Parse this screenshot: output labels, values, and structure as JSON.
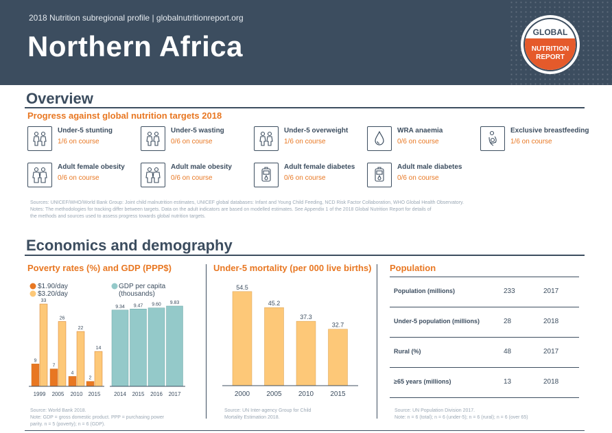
{
  "header": {
    "subtitle": "2018 Nutrition subregional profile | globalnutritionreport.org",
    "title": "Northern Africa",
    "logo_text": [
      "GLOBAL",
      "NUTRITION",
      "REPORT"
    ]
  },
  "overview": {
    "heading": "Overview",
    "subheading": "Progress against global nutrition targets 2018",
    "targets": [
      {
        "label": "Under-5 stunting",
        "status": "1/6 on course",
        "icon": "children-icon"
      },
      {
        "label": "Under-5 wasting",
        "status": "0/6 on course",
        "icon": "children-icon"
      },
      {
        "label": "Under-5 overweight",
        "status": "1/6 on course",
        "icon": "children-icon"
      },
      {
        "label": "WRA anaemia",
        "status": "0/6 on course",
        "icon": "blood-drop-icon"
      },
      {
        "label": "Exclusive breastfeeding",
        "status": "1/6 on course",
        "icon": "mother-child-icon"
      },
      {
        "label": "Adult female obesity",
        "status": "0/6 on course",
        "icon": "adults-icon"
      },
      {
        "label": "Adult male obesity",
        "status": "0/6 on course",
        "icon": "adults-icon"
      },
      {
        "label": "Adult female diabetes",
        "status": "0/6 on course",
        "icon": "glucose-meter-icon"
      },
      {
        "label": "Adult male diabetes",
        "status": "0/6 on course",
        "icon": "glucose-meter-icon"
      }
    ],
    "sources": "Sources: UNICEF/WHO/World Bank Group: Joint child malnutrition estimates, UNICEF global databases: Infant and Young Child Feeding, NCD Risk Factor Collaboration, WHO Global Health Observatory.",
    "notes_1": "Notes: The methodologies for tracking differ between targets. Data on the adult indicators are based on modelled estimates. See Appendix 1 of the 2018 Global Nutrition Report for details of",
    "notes_2": "the methods and sources used to assess progress towards global nutrition targets."
  },
  "economics": {
    "heading": "Economics and demography",
    "poverty_title": "Poverty rates (%) and GDP (PPP$)",
    "mortality_title": "Under-5 mortality (per 000 live births)",
    "population_title": "Population",
    "poverty_source": "Source: World Bank 2018.",
    "poverty_note_1": "Note: GDP = gross domestic product. PPP = purchasing power",
    "poverty_note_2": "parity. n = 5 (poverty); n = 6 (GDP).",
    "mortality_source_1": "Source: UN Inter-agency Group for Child",
    "mortality_source_2": "Mortality Estimation 2018.",
    "population_source": "Source: UN Population Division 2017.",
    "population_note": "Note: n = 6 (total); n = 6 (under-5); n = 6 (rural); n = 6 (over 65)",
    "population_rows": [
      {
        "label": "Population (millions)",
        "value": "233",
        "year": "2017"
      },
      {
        "label": "Under-5 population (millions)",
        "value": "28",
        "year": "2018"
      },
      {
        "label": "Rural (%)",
        "value": "48",
        "year": "2017"
      },
      {
        "label": "≥65 years (millions)",
        "value": "13",
        "year": "2018"
      }
    ]
  },
  "colors": {
    "navy": "#3c4d5f",
    "orange": "#e87722",
    "poverty_dark": "#e87722",
    "poverty_light": "#fdc878",
    "gdp": "#94c9c9",
    "mortality": "#fdc878"
  },
  "chart_data": [
    {
      "type": "bar",
      "categories": [
        "1999",
        "2005",
        "2010",
        "2015"
      ],
      "series": [
        {
          "name": "$1.90/day",
          "values": [
            9,
            7,
            4,
            2
          ]
        },
        {
          "name": "$3.20/day",
          "values": [
            33,
            26,
            22,
            14
          ]
        }
      ],
      "legend": "top-left"
    },
    {
      "type": "bar",
      "categories": [
        "2014",
        "2015",
        "2016",
        "2017"
      ],
      "series": [
        {
          "name": "GDP per capita (thousands)",
          "values": [
            9.34,
            9.47,
            9.6,
            9.83
          ],
          "labels": [
            "9.34",
            "9.47",
            "9.60",
            "9.83"
          ]
        }
      ],
      "legend": "top-left"
    },
    {
      "type": "bar",
      "categories": [
        "2000",
        "2005",
        "2010",
        "2015"
      ],
      "values": [
        54.5,
        45.2,
        37.3,
        32.7
      ],
      "labels": [
        "54.5",
        "45.2",
        "37.3",
        "32.7"
      ]
    }
  ]
}
